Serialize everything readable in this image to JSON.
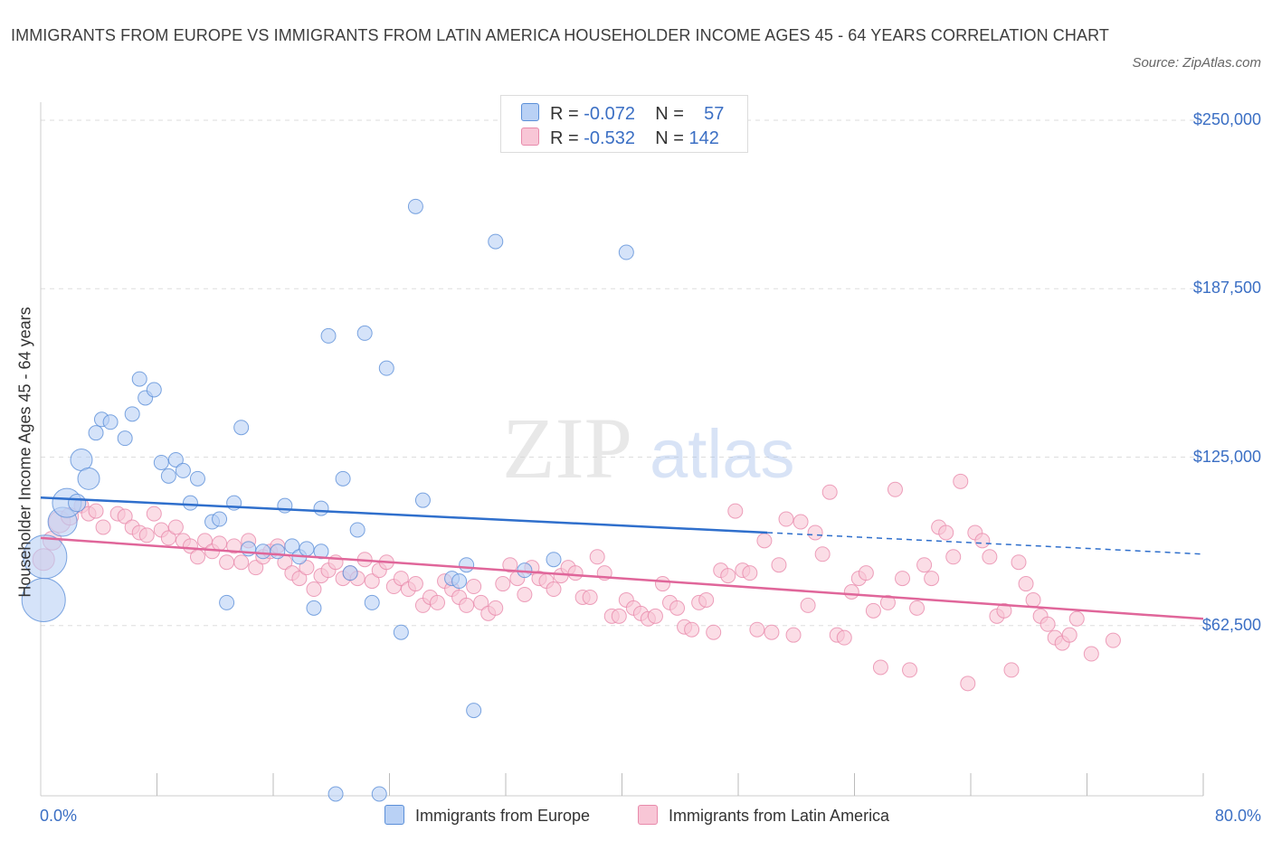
{
  "header": {
    "title": "IMMIGRANTS FROM EUROPE VS IMMIGRANTS FROM LATIN AMERICA HOUSEHOLDER INCOME AGES 45 - 64 YEARS CORRELATION CHART",
    "source": "Source: ZipAtlas.com"
  },
  "legend": {
    "europe": {
      "r_label": "R =",
      "r_value": "-0.072",
      "n_label": "N =",
      "n_value": "57"
    },
    "latam": {
      "r_label": "R =",
      "r_value": "-0.532",
      "n_label": "N =",
      "n_value": "142"
    }
  },
  "watermark": {
    "zip": "ZIP",
    "atlas": "atlas"
  },
  "colors": {
    "europe_fill": "#b9d1f5",
    "europe_stroke": "#5b8fd8",
    "europe_line": "#2f6fcc",
    "latam_fill": "#f8c6d6",
    "latam_stroke": "#e88aab",
    "latam_line": "#e0669a",
    "grid": "#dddddd",
    "axis_text": "#3b6fc4"
  },
  "chart_data": {
    "type": "scatter",
    "title": "IMMIGRANTS FROM EUROPE VS IMMIGRANTS FROM LATIN AMERICA HOUSEHOLDER INCOME AGES 45 - 64 YEARS CORRELATION CHART",
    "xlabel": "",
    "ylabel": "Householder Income Ages 45 - 64 years",
    "xlim": [
      0,
      80
    ],
    "ylim": [
      0,
      250000
    ],
    "x_tick_labels": {
      "min": "0.0%",
      "max": "80.0%"
    },
    "y_ticks": [
      {
        "value": 62500,
        "label": "$62,500"
      },
      {
        "value": 125000,
        "label": "$125,000"
      },
      {
        "value": 187500,
        "label": "$187,500"
      },
      {
        "value": 250000,
        "label": "$250,000"
      }
    ],
    "legend_position": "top-center",
    "series": [
      {
        "name": "Immigrants from Europe",
        "r": -0.072,
        "n": 57,
        "trend": {
          "x0": 0,
          "y0": 110000,
          "x1": 50,
          "y1": 97000,
          "dash_x1": 80,
          "dash_y1": 89000
        },
        "points": [
          [
            0.2,
            72000,
            3
          ],
          [
            0.3,
            88000,
            3
          ],
          [
            1.5,
            101000,
            2
          ],
          [
            1.8,
            108000,
            2
          ],
          [
            2.8,
            124000,
            1.5
          ],
          [
            3.3,
            117000,
            1.5
          ],
          [
            2.5,
            108000,
            1.2
          ],
          [
            3.8,
            134000,
            1
          ],
          [
            4.2,
            139000,
            1
          ],
          [
            4.8,
            138000,
            1
          ],
          [
            5.8,
            132000,
            1
          ],
          [
            6.3,
            141000,
            1
          ],
          [
            6.8,
            154000,
            1
          ],
          [
            7.2,
            147000,
            1
          ],
          [
            7.8,
            150000,
            1
          ],
          [
            8.3,
            123000,
            1
          ],
          [
            8.8,
            118000,
            1
          ],
          [
            9.3,
            124000,
            1
          ],
          [
            9.8,
            120000,
            1
          ],
          [
            10.3,
            108000,
            1
          ],
          [
            10.8,
            117000,
            1
          ],
          [
            11.8,
            101000,
            1
          ],
          [
            12.3,
            102000,
            1
          ],
          [
            12.8,
            71000,
            1
          ],
          [
            13.3,
            108000,
            1
          ],
          [
            13.8,
            136000,
            1
          ],
          [
            14.3,
            91000,
            1
          ],
          [
            15.3,
            90000,
            1
          ],
          [
            16.3,
            90000,
            1
          ],
          [
            16.8,
            107000,
            1
          ],
          [
            17.3,
            92000,
            1
          ],
          [
            17.8,
            88000,
            1
          ],
          [
            18.3,
            91000,
            1
          ],
          [
            18.8,
            69000,
            1
          ],
          [
            19.3,
            106000,
            1
          ],
          [
            19.3,
            90000,
            1
          ],
          [
            19.8,
            170000,
            1
          ],
          [
            20.3,
            0,
            1
          ],
          [
            20.8,
            117000,
            1
          ],
          [
            21.3,
            82000,
            1
          ],
          [
            21.8,
            98000,
            1
          ],
          [
            22.3,
            171000,
            1
          ],
          [
            22.8,
            71000,
            1
          ],
          [
            23.3,
            0,
            1
          ],
          [
            23.8,
            158000,
            1
          ],
          [
            24.8,
            60000,
            1
          ],
          [
            25.8,
            218000,
            1
          ],
          [
            26.3,
            109000,
            1
          ],
          [
            28.3,
            80000,
            1
          ],
          [
            28.8,
            79000,
            1
          ],
          [
            29.3,
            85000,
            1
          ],
          [
            29.8,
            31000,
            1
          ],
          [
            31.3,
            205000,
            1
          ],
          [
            33.3,
            83000,
            1
          ],
          [
            35.3,
            87000,
            1
          ],
          [
            40.3,
            201000,
            1
          ]
        ]
      },
      {
        "name": "Immigrants from Latin America",
        "r": -0.532,
        "n": 142,
        "trend": {
          "x0": 0,
          "y0": 95000,
          "x1": 80,
          "y1": 65000
        },
        "points": [
          [
            0.2,
            87000,
            1.5
          ],
          [
            0.8,
            94000,
            1.3
          ],
          [
            1.3,
            101000,
            1.5
          ],
          [
            2.0,
            103000,
            1.2
          ],
          [
            2.8,
            107000,
            1
          ],
          [
            3.3,
            104000,
            1
          ],
          [
            3.8,
            105000,
            1
          ],
          [
            4.3,
            99000,
            1
          ],
          [
            5.3,
            104000,
            1
          ],
          [
            5.8,
            103000,
            1
          ],
          [
            6.3,
            99000,
            1
          ],
          [
            6.8,
            97000,
            1
          ],
          [
            7.3,
            96000,
            1
          ],
          [
            7.8,
            104000,
            1
          ],
          [
            8.3,
            98000,
            1
          ],
          [
            8.8,
            95000,
            1
          ],
          [
            9.3,
            99000,
            1
          ],
          [
            9.8,
            94000,
            1
          ],
          [
            10.3,
            92000,
            1
          ],
          [
            10.8,
            88000,
            1
          ],
          [
            11.3,
            94000,
            1
          ],
          [
            11.8,
            90000,
            1
          ],
          [
            12.3,
            93000,
            1
          ],
          [
            12.8,
            86000,
            1
          ],
          [
            13.3,
            92000,
            1
          ],
          [
            13.8,
            86000,
            1
          ],
          [
            14.3,
            94000,
            1
          ],
          [
            14.8,
            84000,
            1
          ],
          [
            15.3,
            88000,
            1
          ],
          [
            15.8,
            90000,
            1
          ],
          [
            16.3,
            92000,
            1
          ],
          [
            16.8,
            86000,
            1
          ],
          [
            17.3,
            82000,
            1
          ],
          [
            17.8,
            80000,
            1
          ],
          [
            18.3,
            84000,
            1
          ],
          [
            18.8,
            76000,
            1
          ],
          [
            19.3,
            81000,
            1
          ],
          [
            19.8,
            83000,
            1
          ],
          [
            20.3,
            86000,
            1
          ],
          [
            20.8,
            80000,
            1
          ],
          [
            21.3,
            82000,
            1
          ],
          [
            21.8,
            80000,
            1
          ],
          [
            22.3,
            87000,
            1
          ],
          [
            22.8,
            79000,
            1
          ],
          [
            23.3,
            83000,
            1
          ],
          [
            23.8,
            86000,
            1
          ],
          [
            24.3,
            77000,
            1
          ],
          [
            24.8,
            80000,
            1
          ],
          [
            25.3,
            76000,
            1
          ],
          [
            25.8,
            78000,
            1
          ],
          [
            26.3,
            70000,
            1
          ],
          [
            26.8,
            73000,
            1
          ],
          [
            27.3,
            71000,
            1
          ],
          [
            27.8,
            79000,
            1
          ],
          [
            28.3,
            76000,
            1
          ],
          [
            28.8,
            73000,
            1
          ],
          [
            29.3,
            70000,
            1
          ],
          [
            29.8,
            77000,
            1
          ],
          [
            30.3,
            71000,
            1
          ],
          [
            30.8,
            67000,
            1
          ],
          [
            31.3,
            69000,
            1
          ],
          [
            31.8,
            78000,
            1
          ],
          [
            32.3,
            85000,
            1
          ],
          [
            32.8,
            80000,
            1
          ],
          [
            33.3,
            74000,
            1
          ],
          [
            33.8,
            84000,
            1
          ],
          [
            34.3,
            80000,
            1
          ],
          [
            34.8,
            79000,
            1
          ],
          [
            35.3,
            76000,
            1
          ],
          [
            35.8,
            81000,
            1
          ],
          [
            36.3,
            84000,
            1
          ],
          [
            36.8,
            82000,
            1
          ],
          [
            37.3,
            73000,
            1
          ],
          [
            37.8,
            73000,
            1
          ],
          [
            38.3,
            88000,
            1
          ],
          [
            38.8,
            82000,
            1
          ],
          [
            39.3,
            66000,
            1
          ],
          [
            39.8,
            66000,
            1
          ],
          [
            40.3,
            72000,
            1
          ],
          [
            40.8,
            69000,
            1
          ],
          [
            41.3,
            67000,
            1
          ],
          [
            41.8,
            65000,
            1
          ],
          [
            42.3,
            66000,
            1
          ],
          [
            42.8,
            78000,
            1
          ],
          [
            43.3,
            71000,
            1
          ],
          [
            43.8,
            69000,
            1
          ],
          [
            44.3,
            62000,
            1
          ],
          [
            44.8,
            61000,
            1
          ],
          [
            45.3,
            71000,
            1
          ],
          [
            45.8,
            72000,
            1
          ],
          [
            46.3,
            60000,
            1
          ],
          [
            46.8,
            83000,
            1
          ],
          [
            47.3,
            81000,
            1
          ],
          [
            47.8,
            105000,
            1
          ],
          [
            48.3,
            83000,
            1
          ],
          [
            48.8,
            82000,
            1
          ],
          [
            49.3,
            61000,
            1
          ],
          [
            49.8,
            94000,
            1
          ],
          [
            50.3,
            60000,
            1
          ],
          [
            50.8,
            85000,
            1
          ],
          [
            51.3,
            102000,
            1
          ],
          [
            51.8,
            59000,
            1
          ],
          [
            52.3,
            101000,
            1
          ],
          [
            52.8,
            70000,
            1
          ],
          [
            53.3,
            97000,
            1
          ],
          [
            53.8,
            89000,
            1
          ],
          [
            54.3,
            112000,
            1
          ],
          [
            54.8,
            59000,
            1
          ],
          [
            55.3,
            58000,
            1
          ],
          [
            55.8,
            75000,
            1
          ],
          [
            56.3,
            80000,
            1
          ],
          [
            56.8,
            82000,
            1
          ],
          [
            57.3,
            68000,
            1
          ],
          [
            57.8,
            47000,
            1
          ],
          [
            58.3,
            71000,
            1
          ],
          [
            58.8,
            113000,
            1
          ],
          [
            59.3,
            80000,
            1
          ],
          [
            59.8,
            46000,
            1
          ],
          [
            60.3,
            69000,
            1
          ],
          [
            60.8,
            85000,
            1
          ],
          [
            61.3,
            80000,
            1
          ],
          [
            61.8,
            99000,
            1
          ],
          [
            62.3,
            97000,
            1
          ],
          [
            62.8,
            88000,
            1
          ],
          [
            63.3,
            116000,
            1
          ],
          [
            63.8,
            41000,
            1
          ],
          [
            64.3,
            97000,
            1
          ],
          [
            64.8,
            94000,
            1
          ],
          [
            65.3,
            88000,
            1
          ],
          [
            65.8,
            66000,
            1
          ],
          [
            66.3,
            68000,
            1
          ],
          [
            66.8,
            46000,
            1
          ],
          [
            67.3,
            86000,
            1
          ],
          [
            67.8,
            78000,
            1
          ],
          [
            68.3,
            72000,
            1
          ],
          [
            68.8,
            66000,
            1
          ],
          [
            69.3,
            63000,
            1
          ],
          [
            69.8,
            58000,
            1
          ],
          [
            70.3,
            56000,
            1
          ],
          [
            70.8,
            59000,
            1
          ],
          [
            71.3,
            65000,
            1
          ],
          [
            72.3,
            52000,
            1
          ],
          [
            73.8,
            57000,
            1
          ]
        ]
      }
    ]
  },
  "bottom_legend": {
    "europe": "Immigrants from Europe",
    "latam": "Immigrants from Latin America"
  }
}
